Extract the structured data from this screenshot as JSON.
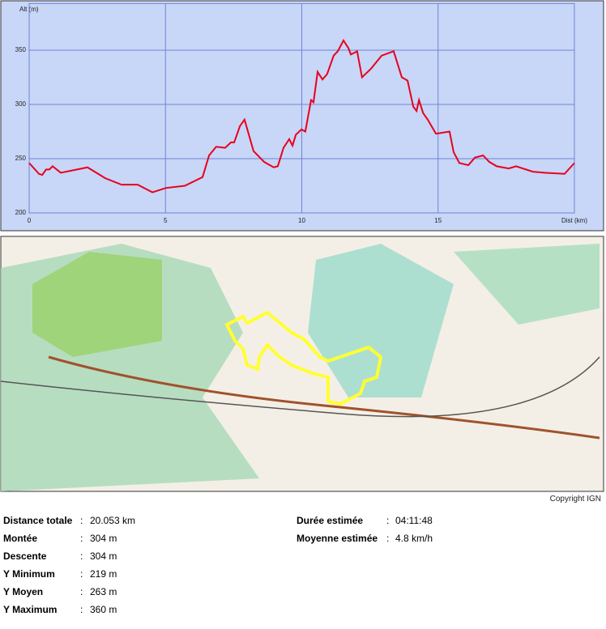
{
  "chart_data": {
    "type": "line",
    "x_label": "Dist (km)",
    "y_label": "Alt (m)",
    "xlim": [
      0,
      20
    ],
    "ylim": [
      200,
      393
    ],
    "xticks": [
      0,
      5,
      10,
      15
    ],
    "yticks": [
      200,
      250,
      300,
      350
    ],
    "grid": true,
    "series": [
      {
        "color": "#e8001c",
        "x": [
          0,
          0.36,
          0.48,
          0.62,
          0.74,
          0.86,
          1.16,
          2.14,
          2.79,
          3.39,
          3.98,
          4.52,
          5.02,
          5.71,
          6.36,
          6.6,
          6.86,
          7.19,
          7.4,
          7.52,
          7.73,
          7.9,
          8.23,
          8.62,
          8.97,
          9.12,
          9.33,
          9.54,
          9.66,
          9.78,
          9.99,
          10.13,
          10.34,
          10.43,
          10.58,
          10.76,
          10.93,
          11.17,
          11.32,
          11.53,
          11.71,
          11.8,
          12.03,
          12.21,
          12.54,
          12.93,
          13.37,
          13.67,
          13.88,
          14.09,
          14.21,
          14.3,
          14.45,
          14.62,
          14.92,
          15.42,
          15.57,
          15.78,
          16.11,
          16.35,
          16.65,
          16.88,
          17.15,
          17.59,
          17.86,
          18.48,
          18.9,
          19.64,
          20.0
        ],
        "values": [
          246,
          236,
          235,
          240,
          240,
          243,
          237,
          242,
          232,
          226,
          226,
          219,
          223,
          225,
          233,
          253,
          261,
          260,
          265,
          265,
          280,
          286,
          257,
          247,
          242,
          243,
          260,
          268,
          262,
          272,
          277,
          275,
          304,
          302,
          330,
          323,
          328,
          345,
          349,
          359,
          352,
          346,
          349,
          325,
          333,
          345,
          349,
          325,
          322,
          298,
          294,
          304,
          292,
          286,
          273,
          275,
          256,
          246,
          244,
          251,
          253,
          247,
          243,
          241,
          243,
          238,
          237,
          236,
          246
        ]
      }
    ]
  },
  "map": {
    "copyright": "Copyright IGN"
  },
  "stats": {
    "separator": ":",
    "left": [
      [
        "Distance totale",
        "20.053 km"
      ],
      [
        "Montée",
        "304 m"
      ],
      [
        "Descente",
        "304 m"
      ],
      [
        "Y Minimum",
        "219 m"
      ],
      [
        "Y Moyen",
        "263 m"
      ],
      [
        "Y Maximum",
        "360 m"
      ]
    ],
    "right": [
      [
        "Durée estimée",
        "04:11:48"
      ],
      [
        "Moyenne estimée",
        "4.8 km/h"
      ]
    ]
  }
}
